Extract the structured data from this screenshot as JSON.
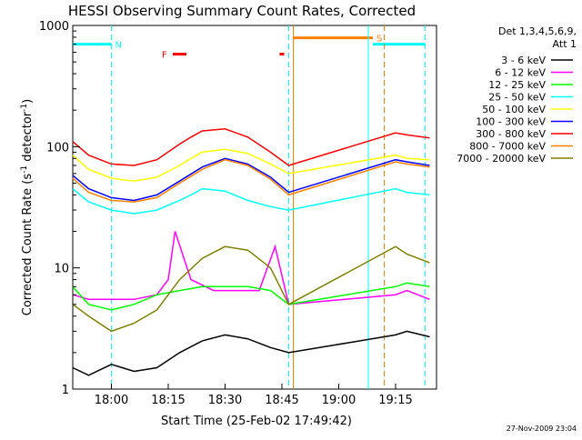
{
  "chart_data": {
    "type": "line",
    "title": "HESSI Observing Summary Count Rates, Corrected",
    "xlabel": "Start Time (25-Feb-02 17:49:42)",
    "ylabel": "Corrected Count Rate (s",
    "ylabel_sup1": "-1",
    "ylabel_mid": " detector",
    "ylabel_sup2": "-1",
    "ylabel_end": ")",
    "y_scale": "log",
    "ylim": [
      1,
      1000
    ],
    "xlim_minutes": [
      17.83,
      19.43
    ],
    "x_ticks": [
      {
        "t": 18.0,
        "label": "18:00"
      },
      {
        "t": 18.25,
        "label": "18:15"
      },
      {
        "t": 18.5,
        "label": "18:30"
      },
      {
        "t": 18.75,
        "label": "18:45"
      },
      {
        "t": 19.0,
        "label": "19:00"
      },
      {
        "t": 19.25,
        "label": "19:15"
      }
    ],
    "y_ticks": [
      {
        "v": 1,
        "label": "1"
      },
      {
        "v": 10,
        "label": "10"
      },
      {
        "v": 100,
        "label": "100"
      },
      {
        "v": 1000,
        "label": "1000"
      }
    ],
    "legend_header": [
      "Det 1,3,4,5,6,9,",
      "Att 1"
    ],
    "legend_position": "right",
    "series": [
      {
        "name": "3 - 6 keV",
        "color": "#000000",
        "t": [
          17.83,
          17.9,
          18.0,
          18.1,
          18.2,
          18.3,
          18.4,
          18.5,
          18.6,
          18.7,
          18.78,
          19.25,
          19.3,
          19.4
        ],
        "v": [
          1.5,
          1.3,
          1.6,
          1.4,
          1.5,
          2.0,
          2.5,
          2.8,
          2.6,
          2.2,
          2.0,
          2.8,
          3.0,
          2.7
        ]
      },
      {
        "name": "6 - 12 keV",
        "color": "#ff00ff",
        "t": [
          17.83,
          17.9,
          18.0,
          18.1,
          18.2,
          18.25,
          18.28,
          18.35,
          18.45,
          18.55,
          18.65,
          18.72,
          18.78,
          19.25,
          19.3,
          19.4
        ],
        "v": [
          6,
          5.5,
          5.5,
          5.5,
          6,
          8,
          20,
          8,
          6.5,
          6.5,
          6.5,
          15,
          5,
          6,
          6.5,
          5.5
        ]
      },
      {
        "name": "12 - 25 keV",
        "color": "#00ff00",
        "t": [
          17.83,
          17.9,
          18.0,
          18.1,
          18.2,
          18.3,
          18.4,
          18.5,
          18.6,
          18.7,
          18.78,
          19.25,
          19.3,
          19.4
        ],
        "v": [
          7,
          5,
          4.5,
          5,
          6,
          6.5,
          7,
          7,
          7,
          6.5,
          5,
          7,
          7.5,
          7
        ]
      },
      {
        "name": "25 - 50 keV",
        "color": "#00ffff",
        "t": [
          17.83,
          17.9,
          18.0,
          18.1,
          18.2,
          18.3,
          18.35,
          18.4,
          18.45,
          18.5,
          18.6,
          18.7,
          18.78,
          19.25,
          19.3,
          19.4
        ],
        "v": [
          45,
          35,
          30,
          28,
          30,
          36,
          40,
          45,
          44,
          43,
          36,
          32,
          30,
          45,
          42,
          40
        ]
      },
      {
        "name": "50 - 100 keV",
        "color": "#ffff00",
        "t": [
          17.83,
          17.9,
          18.0,
          18.1,
          18.2,
          18.3,
          18.35,
          18.4,
          18.5,
          18.6,
          18.7,
          18.78,
          19.25,
          19.3,
          19.4
        ],
        "v": [
          85,
          65,
          55,
          52,
          56,
          70,
          80,
          90,
          95,
          88,
          72,
          60,
          85,
          80,
          78
        ]
      },
      {
        "name": "100 - 300 keV",
        "color": "#0000ff",
        "t": [
          17.83,
          17.9,
          18.0,
          18.1,
          18.2,
          18.3,
          18.4,
          18.5,
          18.6,
          18.7,
          18.78,
          19.25,
          19.3,
          19.4
        ],
        "v": [
          58,
          45,
          38,
          36,
          40,
          52,
          68,
          80,
          72,
          56,
          42,
          78,
          75,
          70
        ]
      },
      {
        "name": "300 - 800 keV",
        "color": "#ff0000",
        "t": [
          17.83,
          17.9,
          18.0,
          18.1,
          18.2,
          18.3,
          18.35,
          18.4,
          18.5,
          18.6,
          18.7,
          18.78,
          19.25,
          19.3,
          19.4
        ],
        "v": [
          110,
          85,
          72,
          70,
          78,
          105,
          120,
          135,
          140,
          120,
          90,
          70,
          130,
          125,
          118
        ]
      },
      {
        "name": "800 - 7000 keV",
        "color": "#ff8000",
        "t": [
          17.83,
          17.9,
          18.0,
          18.1,
          18.2,
          18.3,
          18.4,
          18.5,
          18.6,
          18.7,
          18.78,
          19.25,
          19.3,
          19.4
        ],
        "v": [
          55,
          42,
          36,
          35,
          38,
          50,
          65,
          78,
          70,
          54,
          40,
          75,
          72,
          68
        ]
      },
      {
        "name": "7000 - 20000 keV",
        "color": "#808000",
        "t": [
          17.83,
          17.9,
          18.0,
          18.1,
          18.2,
          18.3,
          18.4,
          18.5,
          18.6,
          18.7,
          18.78,
          19.25,
          19.3,
          19.4
        ],
        "v": [
          5,
          4,
          3,
          3.5,
          4.5,
          8,
          12,
          15,
          14,
          10,
          5,
          15,
          13,
          11
        ]
      }
    ],
    "flag_bars": [
      {
        "label": "N",
        "color": "#00ffff",
        "segments": [
          [
            17.83,
            18.0
          ],
          [
            19.15,
            19.38
          ]
        ],
        "value": 700
      },
      {
        "label": "S",
        "color": "#ff8000",
        "segments": [
          [
            18.8,
            19.15
          ]
        ],
        "value": 790
      },
      {
        "label": "F",
        "color": "#ff0000",
        "segments": [
          [
            18.27,
            18.33
          ],
          [
            18.74,
            18.76
          ]
        ],
        "value": 580
      }
    ],
    "vlines": [
      {
        "t": 18.0,
        "color": "#00ffff",
        "style": "dashed"
      },
      {
        "t": 18.78,
        "color": "#00ffff",
        "style": "dashed"
      },
      {
        "t": 18.8,
        "color": "#ff8000",
        "style": "solid"
      },
      {
        "t": 19.13,
        "color": "#00ffff",
        "style": "solid"
      },
      {
        "t": 19.2,
        "color": "#ff8000",
        "style": "dashed"
      },
      {
        "t": 19.38,
        "color": "#00ffff",
        "style": "dashed"
      }
    ],
    "footer_stamp": "27-Nov-2009 23:04"
  }
}
